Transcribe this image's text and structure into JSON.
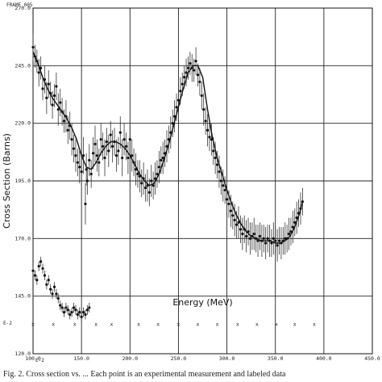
{
  "figure": {
    "frame_label": "FRAME 005",
    "scale_note_left": "E-2",
    "scale_note_left_small": "E-2",
    "caption": "Fig. 2. Cross section vs. ... Each point is an experimental measurement and labeled data"
  },
  "chart_data": {
    "type": "scatter",
    "title": "",
    "xlabel": "Energy (MeV)",
    "ylabel": "Cross Section (Barns)",
    "xlim": [
      100,
      450
    ],
    "ylim": [
      120,
      270
    ],
    "x_ticks": [
      "100.0",
      "150.0",
      "200.0",
      "250.0",
      "300.0",
      "350.0",
      "400.0",
      "450.0"
    ],
    "y_ticks": [
      "120.0",
      "145.0",
      "170.0",
      "195.0",
      "220.0",
      "245.0",
      "270.0"
    ],
    "grid": true,
    "series": [
      {
        "kind": "measurements",
        "points": [
          [
            100,
            253,
            6
          ],
          [
            102,
            249,
            5
          ],
          [
            104,
            247,
            5
          ],
          [
            106,
            242,
            6
          ],
          [
            108,
            244,
            5
          ],
          [
            110,
            235,
            5
          ],
          [
            112,
            239,
            6
          ],
          [
            114,
            231,
            7
          ],
          [
            116,
            237,
            6
          ],
          [
            118,
            233,
            5
          ],
          [
            120,
            228,
            6
          ],
          [
            122,
            232,
            5
          ],
          [
            124,
            236,
            6
          ],
          [
            126,
            226,
            7
          ],
          [
            128,
            229,
            6
          ],
          [
            130,
            225,
            6
          ],
          [
            132,
            221,
            5
          ],
          [
            134,
            223,
            7
          ],
          [
            136,
            217,
            6
          ],
          [
            138,
            219,
            6
          ],
          [
            140,
            213,
            7
          ],
          [
            142,
            209,
            6
          ],
          [
            144,
            206,
            7
          ],
          [
            146,
            203,
            6
          ],
          [
            148,
            201,
            7
          ],
          [
            150,
            199,
            6
          ],
          [
            152,
            206,
            8
          ],
          [
            154,
            185,
            9
          ],
          [
            155,
            200,
            7
          ],
          [
            156,
            195,
            6
          ],
          [
            158,
            204,
            7
          ],
          [
            160,
            198,
            6
          ],
          [
            162,
            207,
            7
          ],
          [
            164,
            211,
            8
          ],
          [
            166,
            206,
            7
          ],
          [
            168,
            203,
            6
          ],
          [
            170,
            213,
            7
          ],
          [
            172,
            210,
            6
          ],
          [
            174,
            205,
            8
          ],
          [
            176,
            212,
            6
          ],
          [
            178,
            208,
            7
          ],
          [
            180,
            215,
            6
          ],
          [
            182,
            210,
            7
          ],
          [
            184,
            212,
            6
          ],
          [
            186,
            206,
            7
          ],
          [
            188,
            208,
            6
          ],
          [
            190,
            216,
            7
          ],
          [
            192,
            205,
            8
          ],
          [
            194,
            213,
            7
          ],
          [
            196,
            210,
            6
          ],
          [
            198,
            205,
            7
          ],
          [
            200,
            213,
            6
          ],
          [
            202,
            206,
            7
          ],
          [
            204,
            203,
            6
          ],
          [
            206,
            200,
            7
          ],
          [
            208,
            198,
            6
          ],
          [
            210,
            197,
            7
          ],
          [
            212,
            194,
            6
          ],
          [
            214,
            196,
            7
          ],
          [
            216,
            192,
            6
          ],
          [
            218,
            193,
            7
          ],
          [
            220,
            190,
            6
          ],
          [
            222,
            195,
            7
          ],
          [
            224,
            193,
            6
          ],
          [
            226,
            196,
            7
          ],
          [
            228,
            198,
            6
          ],
          [
            230,
            201,
            7
          ],
          [
            232,
            204,
            6
          ],
          [
            234,
            205,
            7
          ],
          [
            236,
            207,
            6
          ],
          [
            238,
            210,
            7
          ],
          [
            240,
            213,
            6
          ],
          [
            242,
            216,
            7
          ],
          [
            244,
            220,
            6
          ],
          [
            246,
            223,
            7
          ],
          [
            248,
            227,
            6
          ],
          [
            250,
            230,
            7
          ],
          [
            252,
            234,
            6
          ],
          [
            254,
            237,
            5
          ],
          [
            256,
            240,
            5
          ],
          [
            258,
            242,
            6
          ],
          [
            260,
            244,
            5
          ],
          [
            262,
            246,
            5
          ],
          [
            264,
            244,
            6
          ],
          [
            266,
            243,
            5
          ],
          [
            268,
            247,
            6
          ],
          [
            270,
            241,
            5
          ],
          [
            272,
            238,
            6
          ],
          [
            274,
            232,
            6
          ],
          [
            276,
            226,
            7
          ],
          [
            278,
            221,
            6
          ],
          [
            280,
            217,
            7
          ],
          [
            282,
            214,
            6
          ],
          [
            284,
            213,
            7
          ],
          [
            286,
            208,
            6
          ],
          [
            288,
            205,
            7
          ],
          [
            290,
            202,
            6
          ],
          [
            292,
            199,
            7
          ],
          [
            294,
            195,
            6
          ],
          [
            296,
            193,
            7
          ],
          [
            298,
            191,
            6
          ],
          [
            300,
            187,
            7
          ],
          [
            302,
            185,
            6
          ],
          [
            304,
            182,
            7
          ],
          [
            306,
            180,
            6
          ],
          [
            308,
            178,
            7
          ],
          [
            310,
            176,
            6
          ],
          [
            312,
            177,
            7
          ],
          [
            314,
            174,
            6
          ],
          [
            316,
            172,
            7
          ],
          [
            318,
            174,
            6
          ],
          [
            320,
            171,
            7
          ],
          [
            322,
            173,
            6
          ],
          [
            324,
            170,
            7
          ],
          [
            326,
            171,
            6
          ],
          [
            328,
            172,
            7
          ],
          [
            330,
            170,
            6
          ],
          [
            332,
            169,
            7
          ],
          [
            334,
            171,
            6
          ],
          [
            336,
            169,
            7
          ],
          [
            338,
            170,
            6
          ],
          [
            340,
            168,
            7
          ],
          [
            342,
            170,
            6
          ],
          [
            344,
            169,
            7
          ],
          [
            346,
            168,
            6
          ],
          [
            348,
            170,
            7
          ],
          [
            350,
            169,
            6
          ],
          [
            352,
            167,
            7
          ],
          [
            354,
            169,
            6
          ],
          [
            356,
            168,
            7
          ],
          [
            358,
            169,
            6
          ],
          [
            360,
            170,
            7
          ],
          [
            362,
            170,
            6
          ],
          [
            364,
            172,
            7
          ],
          [
            366,
            173,
            6
          ],
          [
            368,
            175,
            7
          ],
          [
            370,
            177,
            6
          ],
          [
            372,
            179,
            7
          ],
          [
            374,
            181,
            6
          ],
          [
            376,
            183,
            7
          ],
          [
            378,
            186,
            6
          ]
        ]
      },
      {
        "kind": "smooth-fit",
        "x": [
          100,
          105,
          110,
          115,
          120,
          125,
          130,
          135,
          140,
          145,
          150,
          155,
          160,
          165,
          170,
          175,
          180,
          185,
          190,
          195,
          200,
          205,
          210,
          215,
          220,
          225,
          230,
          235,
          240,
          245,
          250,
          255,
          260,
          265,
          270,
          275,
          280,
          285,
          290,
          295,
          300,
          305,
          310,
          315,
          320,
          325,
          330,
          335,
          340,
          345,
          350,
          355,
          360,
          365,
          370,
          375,
          378
        ],
        "y": [
          251,
          246,
          240,
          235,
          231,
          228,
          225,
          222,
          218,
          213,
          206,
          201,
          200,
          203,
          207,
          210,
          212,
          212,
          211,
          209,
          206,
          202,
          198,
          195,
          193,
          194,
          198,
          204,
          211,
          219,
          227,
          235,
          242,
          245,
          245,
          240,
          226,
          214,
          205,
          198,
          191,
          185,
          180,
          176,
          173,
          171,
          170,
          169,
          169,
          169,
          168,
          168,
          169,
          171,
          175,
          181,
          186
        ]
      },
      {
        "kind": "lower-markers",
        "points": [
          [
            100,
            156
          ],
          [
            102,
            154
          ],
          [
            104,
            152
          ],
          [
            106,
            158
          ],
          [
            108,
            160
          ],
          [
            110,
            157
          ],
          [
            112,
            154
          ],
          [
            114,
            150
          ],
          [
            116,
            152
          ],
          [
            118,
            148
          ],
          [
            120,
            146
          ],
          [
            122,
            149
          ],
          [
            124,
            146
          ],
          [
            126,
            144
          ],
          [
            128,
            141
          ],
          [
            130,
            140
          ],
          [
            132,
            138
          ],
          [
            134,
            140
          ],
          [
            136,
            139
          ],
          [
            138,
            137
          ],
          [
            140,
            138
          ],
          [
            142,
            140
          ],
          [
            144,
            139
          ],
          [
            146,
            137
          ],
          [
            148,
            138
          ],
          [
            150,
            136
          ],
          [
            152,
            138
          ],
          [
            154,
            137
          ],
          [
            156,
            139
          ],
          [
            158,
            140
          ]
        ]
      }
    ],
    "x_marker_row": {
      "y": 133,
      "x": [
        100,
        121,
        143,
        165,
        181,
        209,
        229,
        250,
        270,
        290,
        311,
        331,
        351,
        370,
        390
      ]
    }
  }
}
